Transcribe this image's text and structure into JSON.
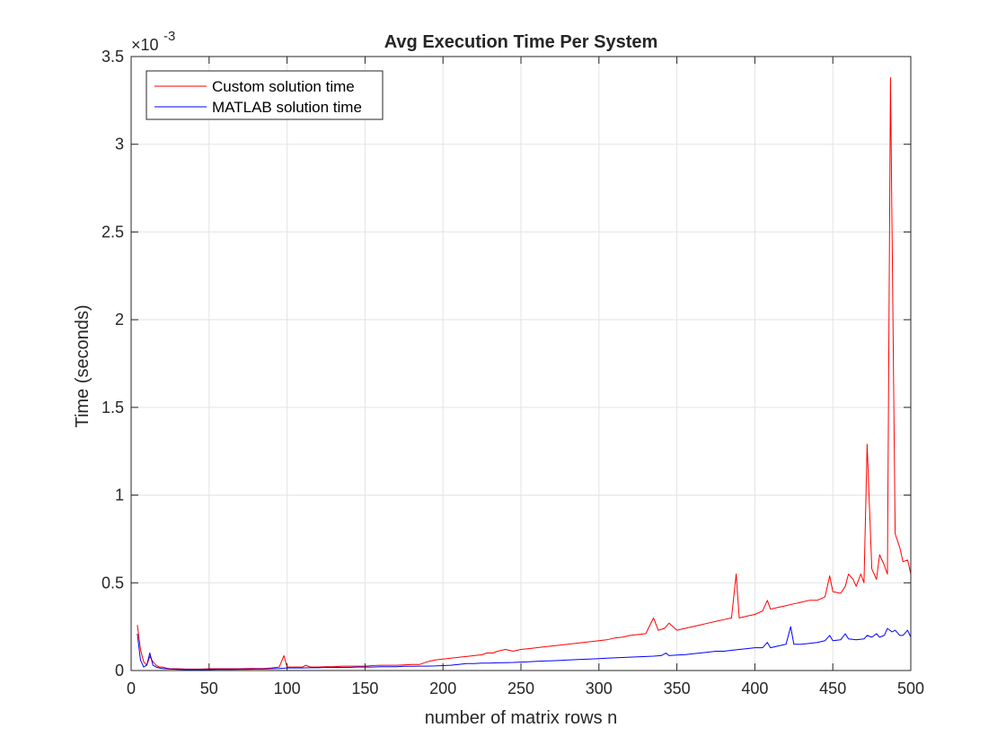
{
  "chart_data": {
    "type": "line",
    "title": "Avg Execution Time Per System",
    "xlabel": "number of matrix rows n",
    "ylabel": "Time (seconds)",
    "y_exponent_label": "×10",
    "y_exponent_power": "-3",
    "xlim": [
      0,
      500
    ],
    "ylim": [
      0,
      3.5
    ],
    "y_scale_note": "values in units of 10^-3 seconds",
    "grid": true,
    "legend_position": "top-left",
    "x_ticks": [
      0,
      50,
      100,
      150,
      200,
      250,
      300,
      350,
      400,
      450,
      500
    ],
    "x_tick_labels": [
      "0",
      "50",
      "100",
      "150",
      "200",
      "250",
      "300",
      "350",
      "400",
      "450",
      "500"
    ],
    "y_ticks": [
      0,
      0.5,
      1,
      1.5,
      2,
      2.5,
      3,
      3.5
    ],
    "y_tick_labels": [
      "0",
      "0.5",
      "1",
      "1.5",
      "2",
      "2.5",
      "3",
      "3.5"
    ],
    "series": [
      {
        "name": "Custom solution time",
        "color": "#ff0000",
        "x": [
          4,
          6,
          8,
          10,
          12,
          14,
          16,
          18,
          20,
          22,
          25,
          30,
          35,
          40,
          45,
          50,
          55,
          60,
          65,
          70,
          75,
          80,
          85,
          90,
          95,
          98,
          100,
          105,
          110,
          112,
          115,
          120,
          125,
          130,
          135,
          140,
          145,
          150,
          155,
          160,
          165,
          170,
          175,
          180,
          185,
          190,
          195,
          200,
          205,
          210,
          215,
          220,
          225,
          228,
          232,
          235,
          240,
          245,
          250,
          255,
          260,
          265,
          270,
          275,
          280,
          285,
          290,
          295,
          300,
          305,
          310,
          315,
          320,
          325,
          330,
          335,
          338,
          342,
          345,
          350,
          355,
          360,
          365,
          370,
          375,
          380,
          385,
          388,
          390,
          395,
          400,
          405,
          408,
          410,
          415,
          420,
          425,
          430,
          435,
          440,
          445,
          448,
          450,
          455,
          458,
          460,
          463,
          465,
          468,
          470,
          472,
          475,
          478,
          480,
          483,
          485,
          487,
          490,
          493,
          495,
          498,
          500
        ],
        "y": [
          0.26,
          0.12,
          0.05,
          0.03,
          0.08,
          0.05,
          0.03,
          0.02,
          0.02,
          0.015,
          0.01,
          0.01,
          0.008,
          0.008,
          0.008,
          0.01,
          0.01,
          0.01,
          0.01,
          0.01,
          0.012,
          0.012,
          0.012,
          0.015,
          0.02,
          0.085,
          0.02,
          0.02,
          0.02,
          0.03,
          0.02,
          0.02,
          0.022,
          0.022,
          0.025,
          0.025,
          0.025,
          0.025,
          0.028,
          0.03,
          0.03,
          0.03,
          0.032,
          0.035,
          0.035,
          0.05,
          0.06,
          0.065,
          0.07,
          0.075,
          0.08,
          0.085,
          0.09,
          0.1,
          0.1,
          0.11,
          0.12,
          0.11,
          0.12,
          0.125,
          0.13,
          0.135,
          0.14,
          0.145,
          0.15,
          0.155,
          0.16,
          0.165,
          0.17,
          0.175,
          0.185,
          0.19,
          0.2,
          0.205,
          0.21,
          0.3,
          0.23,
          0.24,
          0.27,
          0.23,
          0.24,
          0.25,
          0.26,
          0.27,
          0.28,
          0.29,
          0.3,
          0.55,
          0.3,
          0.31,
          0.32,
          0.34,
          0.4,
          0.35,
          0.36,
          0.37,
          0.38,
          0.39,
          0.4,
          0.4,
          0.42,
          0.54,
          0.45,
          0.44,
          0.48,
          0.55,
          0.52,
          0.48,
          0.55,
          0.5,
          1.29,
          0.58,
          0.52,
          0.66,
          0.6,
          0.55,
          3.38,
          0.78,
          0.7,
          0.62,
          0.63,
          0.55
        ]
      },
      {
        "name": "MATLAB solution time",
        "color": "#0000ff",
        "x": [
          4,
          6,
          8,
          10,
          12,
          14,
          16,
          18,
          20,
          22,
          25,
          30,
          35,
          40,
          45,
          50,
          55,
          60,
          65,
          70,
          75,
          80,
          85,
          90,
          95,
          100,
          105,
          110,
          115,
          120,
          125,
          130,
          135,
          140,
          145,
          150,
          155,
          160,
          165,
          170,
          175,
          180,
          185,
          190,
          195,
          200,
          205,
          210,
          215,
          220,
          225,
          230,
          235,
          240,
          245,
          250,
          255,
          260,
          265,
          270,
          275,
          280,
          285,
          290,
          295,
          300,
          305,
          310,
          315,
          320,
          325,
          330,
          335,
          340,
          343,
          345,
          350,
          355,
          360,
          365,
          370,
          375,
          380,
          385,
          390,
          395,
          400,
          405,
          408,
          410,
          415,
          420,
          423,
          425,
          430,
          435,
          440,
          445,
          448,
          450,
          455,
          458,
          460,
          465,
          470,
          472,
          475,
          478,
          480,
          483,
          485,
          488,
          490,
          493,
          495,
          498,
          500
        ],
        "y": [
          0.21,
          0.06,
          0.02,
          0.03,
          0.1,
          0.03,
          0.02,
          0.015,
          0.012,
          0.01,
          0.008,
          0.006,
          0.005,
          0.005,
          0.005,
          0.005,
          0.006,
          0.006,
          0.006,
          0.007,
          0.007,
          0.008,
          0.008,
          0.01,
          0.012,
          0.015,
          0.015,
          0.015,
          0.016,
          0.016,
          0.018,
          0.018,
          0.018,
          0.018,
          0.02,
          0.02,
          0.02,
          0.022,
          0.022,
          0.022,
          0.024,
          0.024,
          0.025,
          0.025,
          0.026,
          0.028,
          0.03,
          0.035,
          0.04,
          0.04,
          0.042,
          0.042,
          0.044,
          0.045,
          0.046,
          0.048,
          0.05,
          0.052,
          0.054,
          0.056,
          0.058,
          0.06,
          0.062,
          0.064,
          0.066,
          0.068,
          0.07,
          0.072,
          0.074,
          0.076,
          0.078,
          0.08,
          0.082,
          0.085,
          0.1,
          0.085,
          0.088,
          0.09,
          0.095,
          0.1,
          0.105,
          0.11,
          0.11,
          0.115,
          0.12,
          0.125,
          0.13,
          0.13,
          0.16,
          0.13,
          0.14,
          0.15,
          0.25,
          0.15,
          0.15,
          0.155,
          0.16,
          0.17,
          0.2,
          0.17,
          0.175,
          0.21,
          0.18,
          0.175,
          0.18,
          0.2,
          0.19,
          0.21,
          0.19,
          0.2,
          0.24,
          0.22,
          0.23,
          0.2,
          0.2,
          0.23,
          0.19
        ]
      }
    ]
  }
}
